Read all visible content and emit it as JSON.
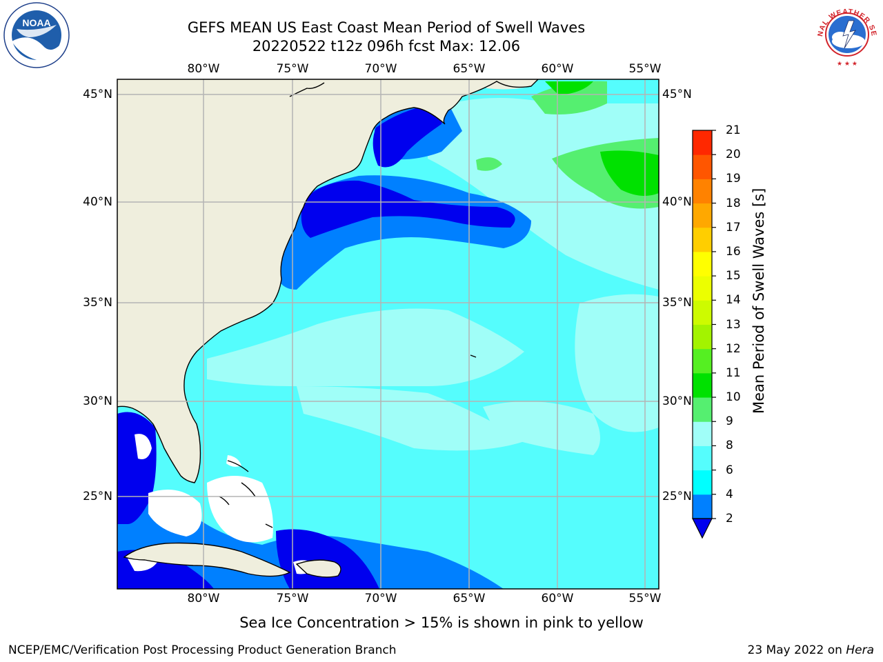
{
  "title": {
    "line1": "GEFS MEAN US East Coast Mean Period of Swell Waves",
    "line2": "20220522 t12z 096h fcst   Max: 12.06"
  },
  "logos": {
    "left": {
      "name": "noaa-logo",
      "text": "NOAA"
    },
    "right": {
      "name": "national-weather-service-logo",
      "text": "NATIONAL WEATHER SERVICE"
    }
  },
  "map": {
    "lon_labels": [
      "80°W",
      "75°W",
      "70°W",
      "65°W",
      "60°W",
      "55°W"
    ],
    "lat_labels": [
      "45°N",
      "40°N",
      "35°N",
      "30°N",
      "25°N"
    ],
    "colors": {
      "land": "#efeedd",
      "ocean_base": "#55fdfd",
      "no_data": "#ffffff",
      "grid": "#b4b4b4",
      "coast": "#000000"
    }
  },
  "colorbar": {
    "label": "Mean Period of Swell Waves [s]",
    "tick_labels": [
      "2",
      "4",
      "6",
      "8",
      "9",
      "10",
      "11",
      "12",
      "13",
      "14",
      "15",
      "16",
      "17",
      "18",
      "19",
      "20",
      "21"
    ],
    "colors": [
      "#0000ee",
      "#0080ff",
      "#00ffff",
      "#55fdfd",
      "#a0fef8",
      "#55ef70",
      "#00e100",
      "#55ef22",
      "#a3f300",
      "#cdfb00",
      "#ecff00",
      "#ffff00",
      "#ffce00",
      "#ffa800",
      "#ff8200",
      "#ff5600",
      "#ff2800",
      "#ff0000"
    ],
    "under_color": "#0000ee"
  },
  "footer": {
    "note": "Sea Ice Concentration > 15% is shown in pink to yellow",
    "credit": "NCEP/EMC/Verification Post Processing Product Generation Branch",
    "date": "23 May 2022 on ",
    "machine": "Hera"
  }
}
